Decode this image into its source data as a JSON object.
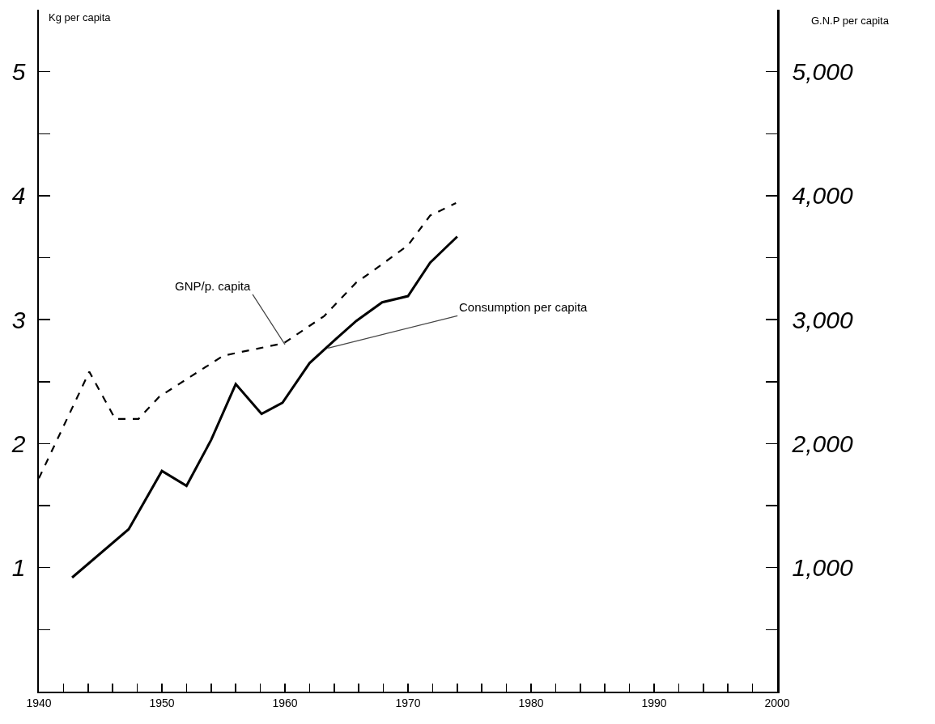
{
  "chart_data": {
    "type": "line",
    "ylabel": "Kg per capita",
    "y2label": "G.N.P per capita",
    "xlim": [
      1940,
      2000
    ],
    "xticks": [
      1940,
      {
        "value": 1942,
        "label": null
      },
      {
        "value": 1944,
        "label": null
      },
      {
        "value": 1946,
        "label": null
      },
      {
        "value": 1948,
        "label": null
      },
      1950,
      {
        "value": 1952,
        "label": null
      },
      {
        "value": 1954,
        "label": null
      },
      {
        "value": 1956,
        "label": null
      },
      {
        "value": 1958,
        "label": null
      },
      1960,
      {
        "value": 1962,
        "label": null
      },
      {
        "value": 1964,
        "label": null
      },
      {
        "value": 1966,
        "label": null
      },
      {
        "value": 1968,
        "label": null
      },
      1970,
      {
        "value": 1972,
        "label": null
      },
      {
        "value": 1974,
        "label": null
      },
      {
        "value": 1976,
        "label": null
      },
      {
        "value": 1978,
        "label": null
      },
      1980,
      {
        "value": 1982,
        "label": null
      },
      {
        "value": 1984,
        "label": null
      },
      {
        "value": 1986,
        "label": null
      },
      {
        "value": 1988,
        "label": null
      },
      1990,
      {
        "value": 1992,
        "label": null
      },
      {
        "value": 1994,
        "label": null
      },
      {
        "value": 1996,
        "label": null
      },
      {
        "value": 1998,
        "label": null
      },
      2000
    ],
    "ylim": [
      0,
      5.5
    ],
    "yticks": [
      {
        "value": 0.5,
        "label": null
      },
      1,
      {
        "value": 1.5,
        "label": null
      },
      2,
      {
        "value": 2.5,
        "label": null
      },
      3,
      {
        "value": 3.5,
        "label": null
      },
      4,
      {
        "value": 4.5,
        "label": null
      },
      5
    ],
    "y2lim": [
      0,
      5500
    ],
    "y2ticks": [
      {
        "value": 500,
        "label": null
      },
      {
        "value": 1000,
        "label": "1,000"
      },
      {
        "value": 1500,
        "label": null
      },
      {
        "value": 2000,
        "label": "2,000"
      },
      {
        "value": 2500,
        "label": null
      },
      {
        "value": 3000,
        "label": "3,000"
      },
      {
        "value": 3500,
        "label": null
      },
      {
        "value": 4000,
        "label": "4,000"
      },
      {
        "value": 4500,
        "label": null
      },
      {
        "value": 5000,
        "label": "5,000"
      }
    ],
    "grid": false,
    "marker": "none",
    "series": [
      {
        "color": "#000000",
        "line_style": "solid",
        "x": [
          1942.7,
          1947.3,
          1950,
          1952,
          1954,
          1956,
          1958.1,
          1959.8,
          1962,
          1964.1,
          1965.8,
          1967.9,
          1970,
          1971.8,
          1974
        ],
        "values": [
          0.92,
          1.31,
          1.78,
          1.66,
          2.03,
          2.48,
          2.24,
          2.33,
          2.65,
          2.84,
          2.99,
          3.14,
          3.19,
          3.46,
          3.67
        ]
      },
      {
        "color": "#000000",
        "line_style": "dashed",
        "axis": "y2",
        "x": [
          1940,
          1944.1,
          1946.2,
          1948.1,
          1949.8,
          1955,
          1959.9,
          1963.2,
          1965.8,
          1967.1,
          1970,
          1971.8,
          1973.9
        ],
        "values": [
          1720,
          2580,
          2200,
          2200,
          2380,
          2710,
          2810,
          3030,
          3300,
          3390,
          3600,
          3840,
          3940
        ]
      }
    ],
    "annotations": [
      {
        "text": "GNP/p. capita",
        "x": 1960,
        "y": 2.8
      },
      {
        "text": "Consumption per capita",
        "x": 1963.5,
        "y": 2.77
      }
    ]
  }
}
